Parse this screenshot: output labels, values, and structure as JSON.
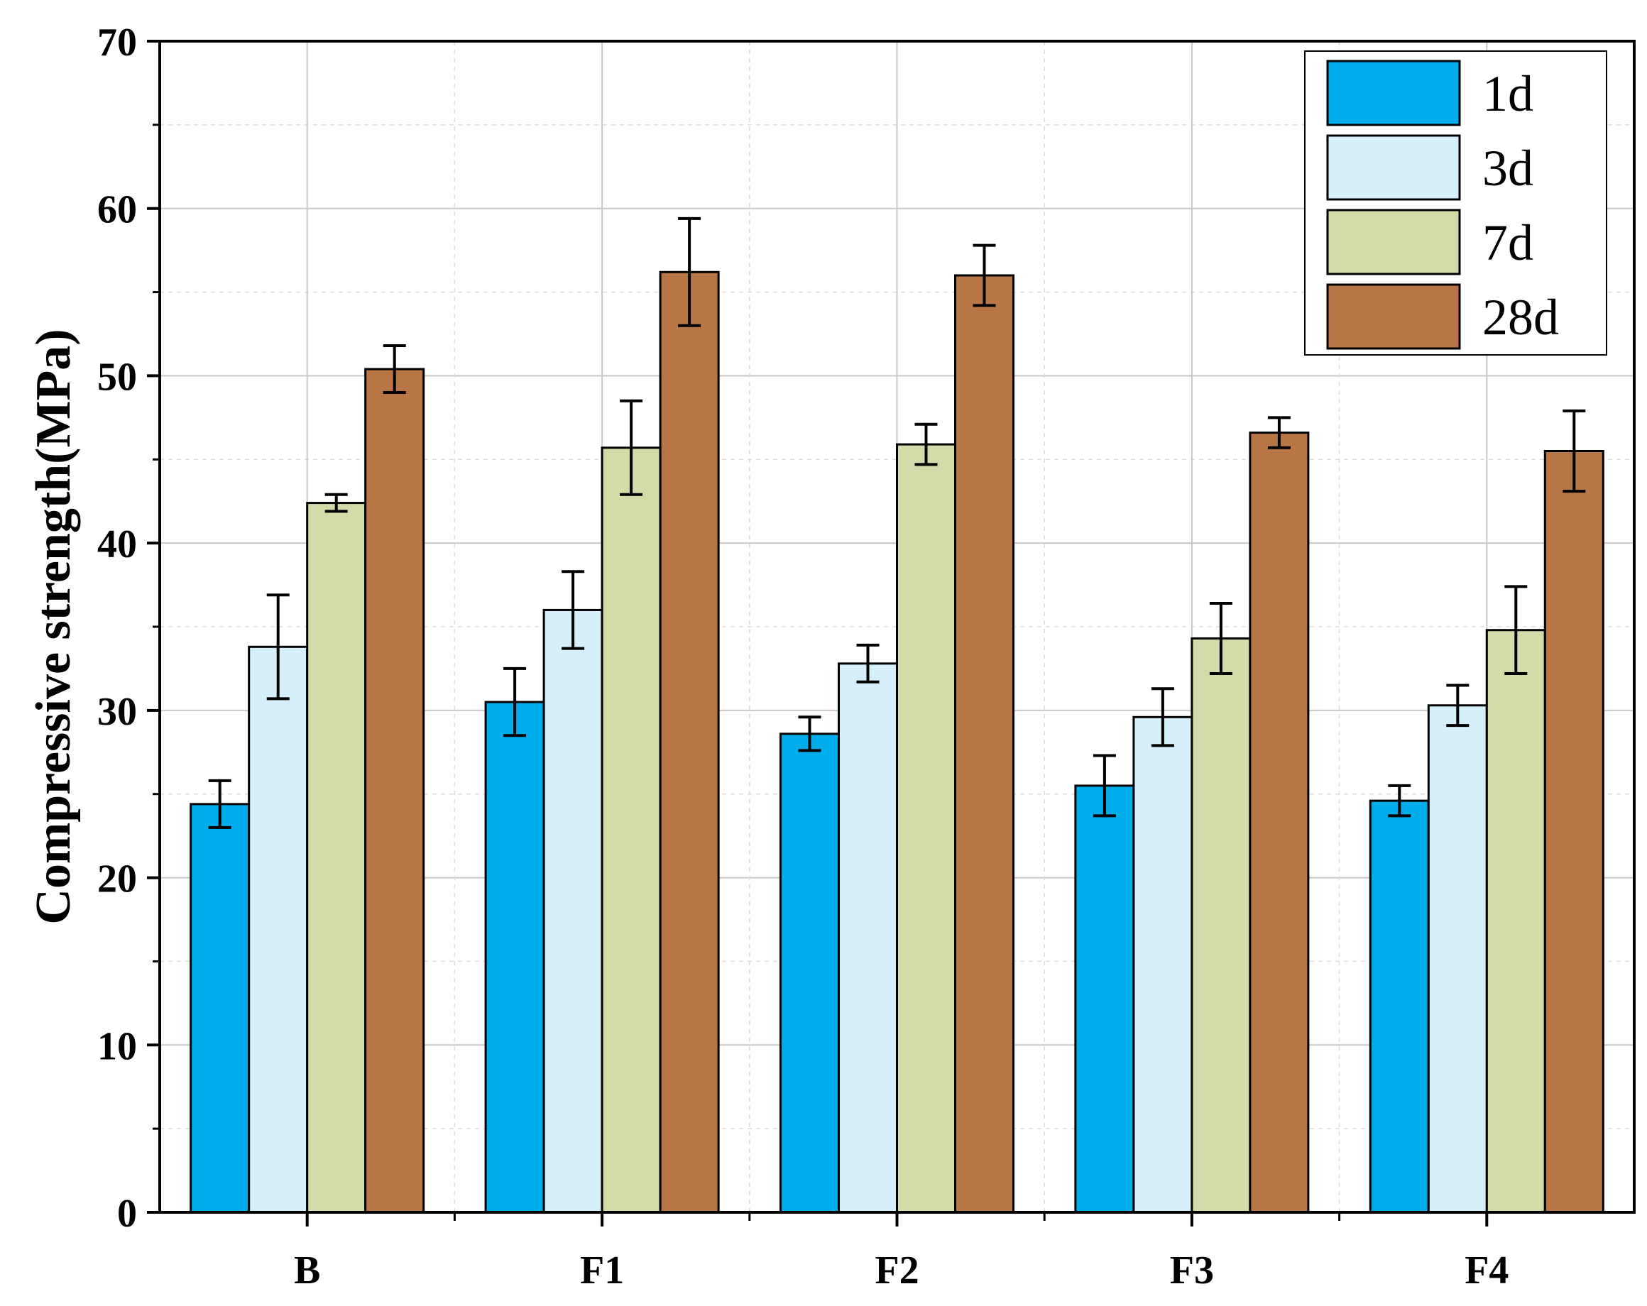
{
  "chart_data": {
    "type": "bar",
    "title": "",
    "xlabel": "",
    "ylabel": "Compressive strength(MPa)",
    "ylim": [
      0,
      70
    ],
    "yticks": [
      0,
      10,
      20,
      30,
      40,
      50,
      60,
      70
    ],
    "grid": true,
    "legend_position": "top-right",
    "categories": [
      "B",
      "F1",
      "F2",
      "F3",
      "F4"
    ],
    "series": [
      {
        "name": "1d",
        "color": "#00ADEA",
        "values": [
          24.4,
          30.5,
          28.6,
          25.5,
          24.6
        ],
        "errors": [
          1.4,
          2.0,
          1.0,
          1.8,
          0.9
        ]
      },
      {
        "name": "3d",
        "color": "#D5F0FA",
        "values": [
          33.8,
          36.0,
          32.8,
          29.6,
          30.3
        ],
        "errors": [
          3.1,
          2.3,
          1.1,
          1.7,
          1.2
        ]
      },
      {
        "name": "7d",
        "color": "#D3DCA8",
        "values": [
          42.4,
          45.7,
          45.9,
          34.3,
          34.8
        ],
        "errors": [
          0.5,
          2.8,
          1.2,
          2.1,
          2.6
        ]
      },
      {
        "name": "28d",
        "color": "#B87545",
        "values": [
          50.4,
          56.2,
          56.0,
          46.6,
          45.5
        ],
        "errors": [
          1.4,
          3.2,
          1.8,
          0.9,
          2.4
        ]
      }
    ]
  }
}
